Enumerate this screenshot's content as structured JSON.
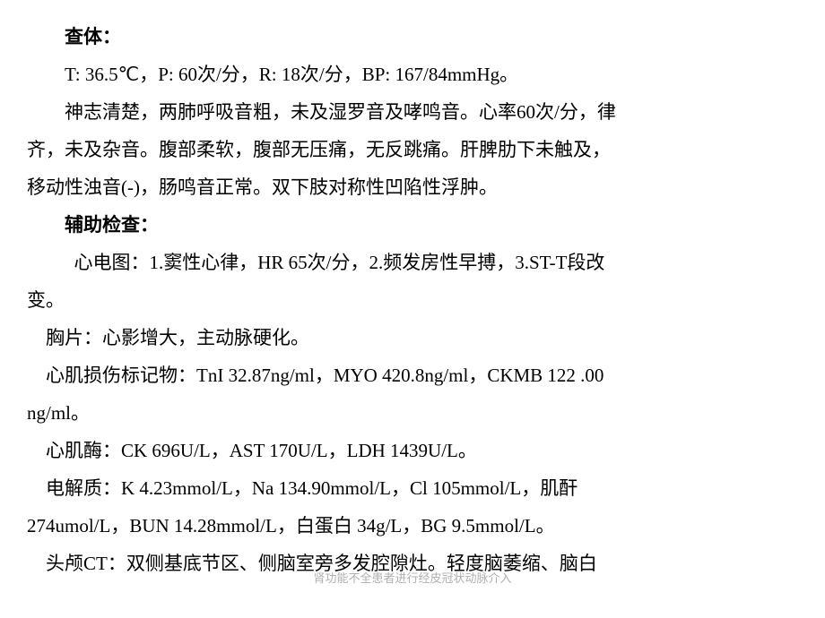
{
  "sections": {
    "physical_exam": {
      "heading": "查体：",
      "vitals": "T: 36.5℃，P: 60次/分，R: 18次/分，BP: 167/84mmHg。",
      "findings_line1": "神志清楚，两肺呼吸音粗，未及湿罗音及哮鸣音。心率60次/分，律",
      "findings_line2": "齐，未及杂音。腹部柔软，腹部无压痛，无反跳痛。肝脾肋下未触及，",
      "findings_line3": "移动性浊音(-)，肠鸣音正常。双下肢对称性凹陷性浮肿。"
    },
    "aux_exam": {
      "heading": "辅助检查：",
      "ecg_line1": "心电图：1.窦性心律，HR 65次/分，2.频发房性早搏，3.ST-T段改",
      "ecg_line2": "变。",
      "chest_xray": "胸片：心影增大，主动脉硬化。",
      "cardiac_markers_line1": "心肌损伤标记物：TnI 32.87ng/ml，MYO 420.8ng/ml，CKMB 122 .00",
      "cardiac_markers_line2": "ng/ml。",
      "cardiac_enzymes": "心肌酶：CK 696U/L，AST 170U/L，LDH 1439U/L。",
      "electrolytes_line1": "电解质：K 4.23mmol/L，Na 134.90mmol/L，Cl 105mmol/L，肌酐",
      "electrolytes_line2": "274umol/L，BUN 14.28mmol/L，白蛋白 34g/L，BG 9.5mmol/L。",
      "head_ct": "头颅CT：双侧基底节区、侧脑室旁多发腔隙灶。轻度脑萎缩、脑白"
    }
  },
  "watermark": "肾功能不全患者进行经皮冠状动脉介入"
}
